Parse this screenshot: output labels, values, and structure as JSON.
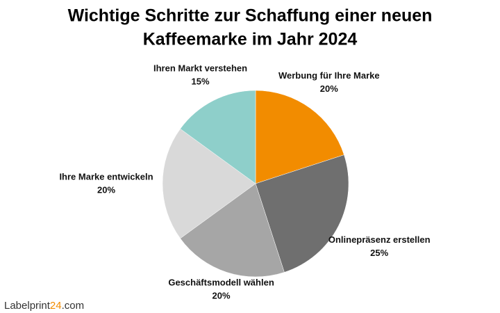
{
  "chart_data": {
    "type": "pie",
    "title": [
      "Wichtige Schritte zur Schaffung einer neuen",
      "Kaffeemarke im Jahr 2024"
    ],
    "categories": [
      "Werbung für Ihre Marke",
      "Onlinepräsenz erstellen",
      "Geschäftsmodell wählen",
      "Ihre Marke entwickeln",
      "Ihren Markt verstehen"
    ],
    "values": [
      20,
      25,
      20,
      20,
      15
    ],
    "value_labels": [
      "20%",
      "25%",
      "20%",
      "20%",
      "15%"
    ],
    "colors": [
      "#f28c00",
      "#6f6f6f",
      "#a6a6a6",
      "#d9d9d9",
      "#8ecfca"
    ]
  },
  "brand": [
    "Labelprint",
    "24",
    ".com"
  ]
}
